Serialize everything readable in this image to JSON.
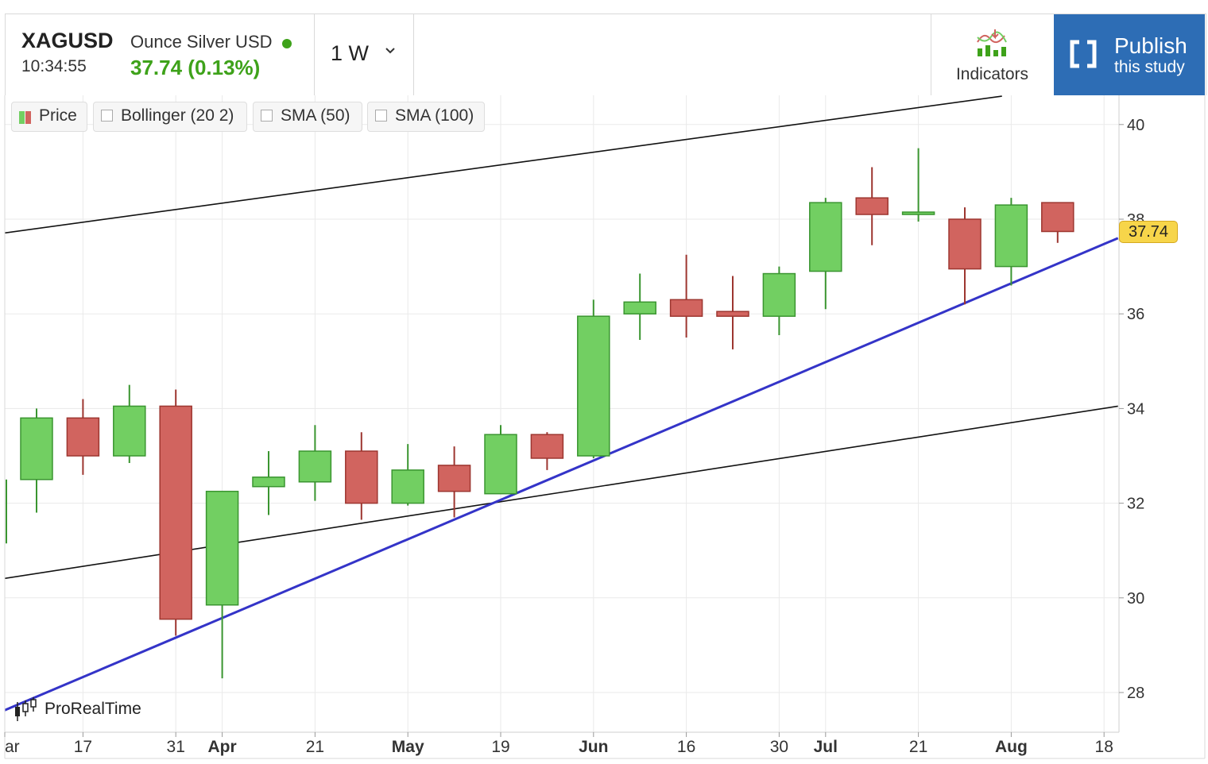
{
  "header": {
    "symbol": "XAGUSD",
    "name": "Ounce Silver USD",
    "time": "10:34:55",
    "quote": "37.74 (0.13%)",
    "timeframe": "1 W",
    "indicators_label": "Indicators",
    "publish_line1": "Publish",
    "publish_line2": "this study"
  },
  "legend": [
    "Price",
    "Bollinger (20 2)",
    "SMA (50)",
    "SMA (100)"
  ],
  "watermark": "ProRealTime",
  "colors": {
    "up": "#72cf62",
    "down": "#d1645f",
    "upEdge": "#3a9530",
    "downEdge": "#9d3630",
    "trend": "#3434c8",
    "accent": "#2d6db5",
    "flag": "#f7d54a"
  },
  "chart_data": {
    "type": "candlestick",
    "title": "XAGUSD",
    "xlabel": "",
    "ylabel": "",
    "ylim": [
      27.4,
      40.6
    ],
    "y_ticks": [
      "28",
      "30",
      "32",
      "34",
      "36",
      "38",
      "40"
    ],
    "x_ticks": [
      "ar",
      "17",
      "31",
      "Apr",
      "21",
      "May",
      "19",
      "Jun",
      "16",
      "30",
      "Jul",
      "21",
      "Aug",
      "18"
    ],
    "last_price": "37.74",
    "candles": [
      {
        "o": 32.5,
        "h": 34.0,
        "l": 31.8,
        "c": 33.8
      },
      {
        "o": 33.8,
        "h": 34.2,
        "l": 32.6,
        "c": 33.0
      },
      {
        "o": 33.0,
        "h": 34.5,
        "l": 32.85,
        "c": 34.05
      },
      {
        "o": 34.05,
        "h": 34.4,
        "l": 29.2,
        "c": 29.55
      },
      {
        "o": 29.85,
        "h": 32.25,
        "l": 28.3,
        "c": 32.25
      },
      {
        "o": 32.35,
        "h": 33.1,
        "l": 31.75,
        "c": 32.55
      },
      {
        "o": 32.45,
        "h": 33.65,
        "l": 32.05,
        "c": 33.1
      },
      {
        "o": 33.1,
        "h": 33.5,
        "l": 31.65,
        "c": 32.0
      },
      {
        "o": 32.0,
        "h": 33.25,
        "l": 31.95,
        "c": 32.7
      },
      {
        "o": 32.8,
        "h": 33.2,
        "l": 31.7,
        "c": 32.25
      },
      {
        "o": 32.2,
        "h": 33.65,
        "l": 32.2,
        "c": 33.45
      },
      {
        "o": 33.45,
        "h": 33.5,
        "l": 32.7,
        "c": 32.95
      },
      {
        "o": 33.0,
        "h": 36.3,
        "l": 32.95,
        "c": 35.95
      },
      {
        "o": 36.0,
        "h": 36.85,
        "l": 35.45,
        "c": 36.25
      },
      {
        "o": 36.3,
        "h": 37.25,
        "l": 35.5,
        "c": 35.95
      },
      {
        "o": 36.05,
        "h": 36.8,
        "l": 35.25,
        "c": 35.95
      },
      {
        "o": 35.95,
        "h": 37.0,
        "l": 35.55,
        "c": 36.85
      },
      {
        "o": 36.9,
        "h": 38.45,
        "l": 36.1,
        "c": 38.35
      },
      {
        "o": 38.45,
        "h": 39.1,
        "l": 37.45,
        "c": 38.1
      },
      {
        "o": 38.1,
        "h": 39.5,
        "l": 37.95,
        "c": 38.15
      },
      {
        "o": 38.0,
        "h": 38.25,
        "l": 36.2,
        "c": 36.95
      },
      {
        "o": 37.0,
        "h": 38.45,
        "l": 36.6,
        "c": 38.3
      },
      {
        "o": 38.35,
        "h": 38.35,
        "l": 37.5,
        "c": 37.74
      }
    ],
    "lines": [
      {
        "name": "upper-channel-line",
        "color": "#111111",
        "x0": -0.75,
        "y0": 37.7,
        "x1": 20.8,
        "y1": 40.6
      },
      {
        "name": "lower-channel-line",
        "color": "#111111",
        "x0": -0.75,
        "y0": 30.4,
        "x1": 23.3,
        "y1": 34.05
      },
      {
        "name": "trend-line",
        "color": "#3434c8",
        "x0": -0.75,
        "y0": 27.6,
        "x1": 23.3,
        "y1": 37.6
      }
    ]
  }
}
